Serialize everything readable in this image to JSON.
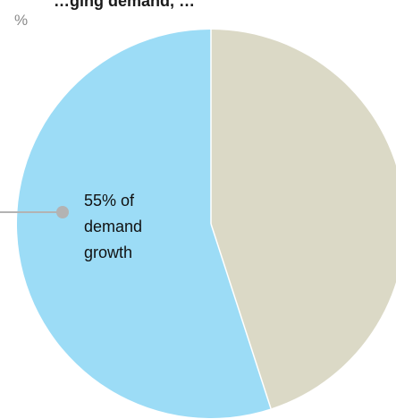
{
  "chart_data": {
    "type": "pie",
    "title": "…ging demand, …",
    "unit": "%",
    "slices": [
      {
        "value": 55,
        "color": "#9cdcf6"
      },
      {
        "value": 45,
        "color": "#dbd9c6"
      }
    ],
    "annotation": {
      "lines": [
        "55% of",
        "demand",
        "growth"
      ],
      "marker_color": "#b3b3b3"
    },
    "separator_color": "#ffffff"
  }
}
